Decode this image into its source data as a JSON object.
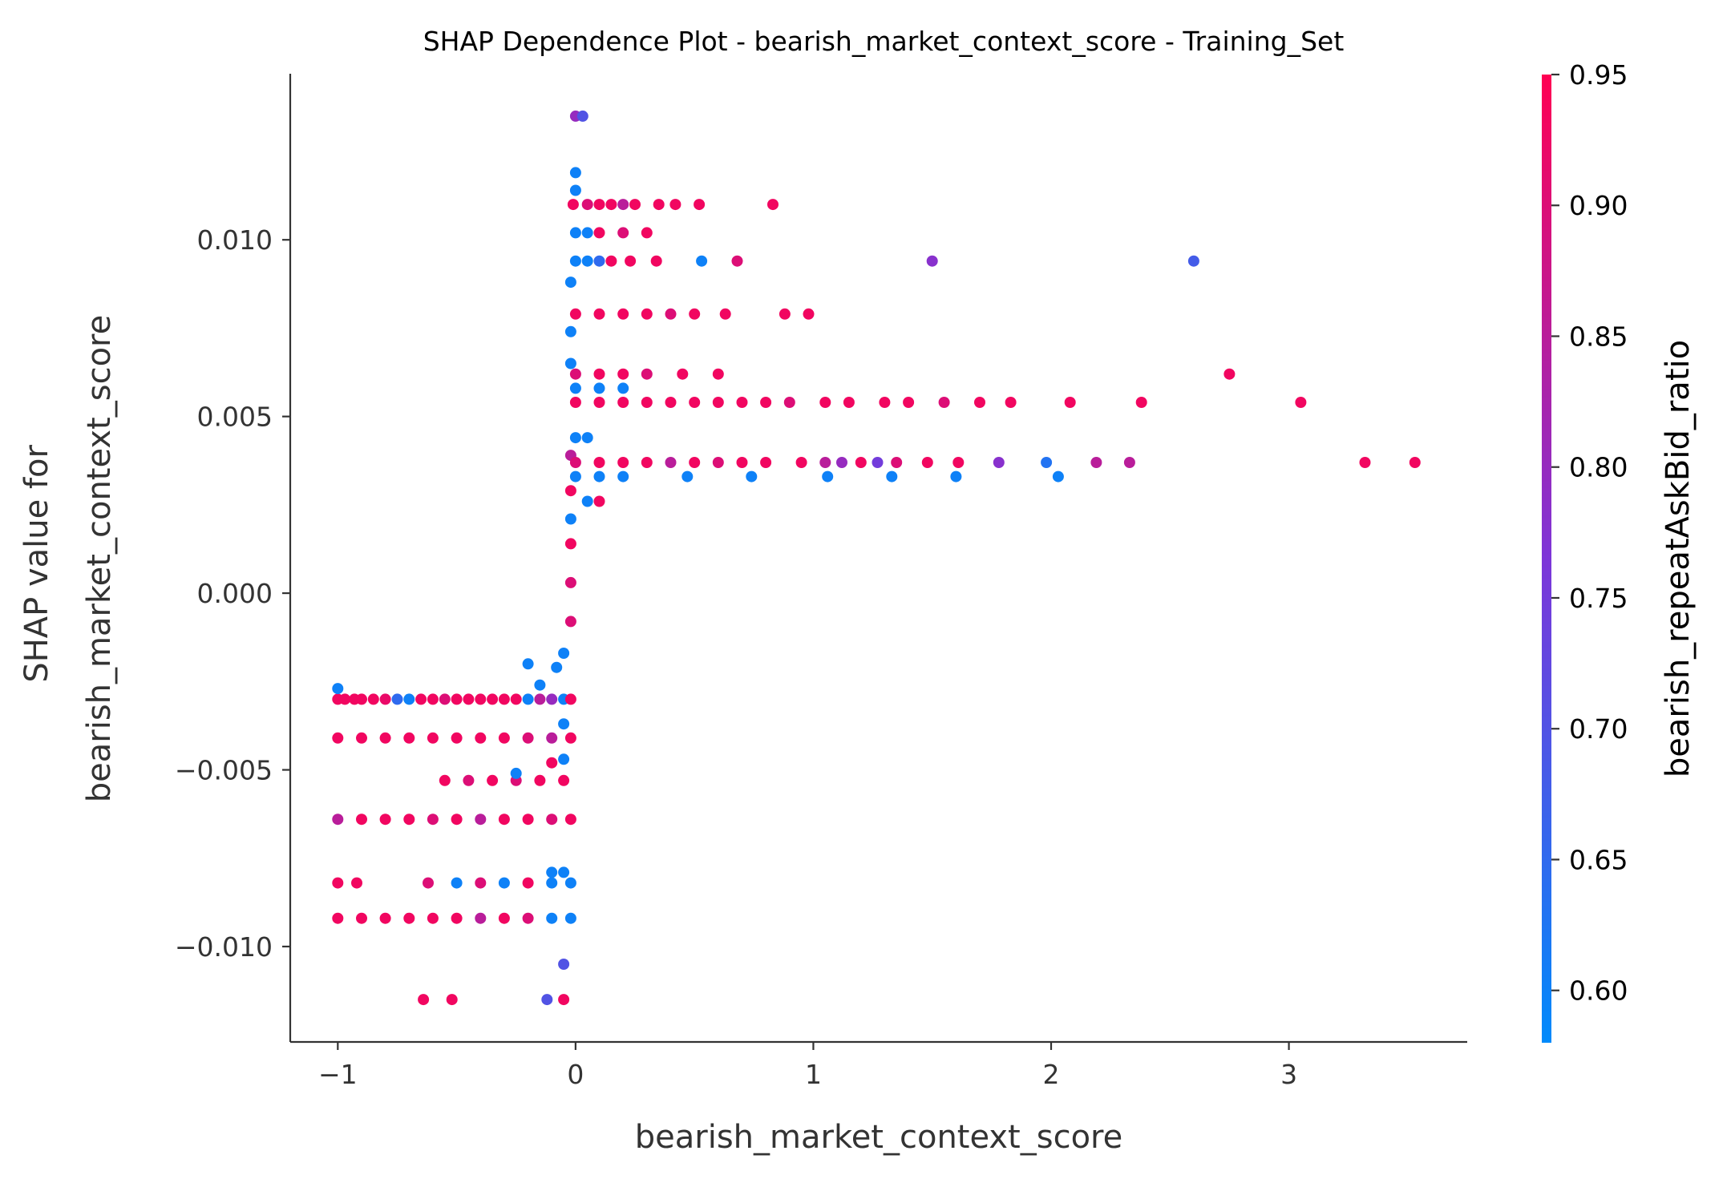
{
  "chart_data": {
    "type": "scatter",
    "title": "SHAP Dependence Plot - bearish_market_context_score - Training_Set",
    "xlabel": "bearish_market_context_score",
    "ylabel_lines": [
      "SHAP value for",
      "bearish_market_context_score"
    ],
    "xlim": [
      -1.2,
      3.75
    ],
    "ylim": [
      -0.0127,
      0.0147
    ],
    "xticks": [
      -1,
      0,
      1,
      2,
      3
    ],
    "xtick_labels": [
      "−1",
      "0",
      "1",
      "2",
      "3"
    ],
    "yticks": [
      -0.01,
      -0.005,
      0.0,
      0.005,
      0.01
    ],
    "ytick_labels": [
      "−0.010",
      "−0.005",
      "0.000",
      "0.005",
      "0.010"
    ],
    "grid": false,
    "colorbar": {
      "label": "bearish_repeatAskBid_ratio",
      "range": [
        0.58,
        0.95
      ],
      "ticks": [
        0.6,
        0.65,
        0.7,
        0.75,
        0.8,
        0.85,
        0.9,
        0.95
      ],
      "tick_labels": [
        "0.60",
        "0.65",
        "0.70",
        "0.75",
        "0.80",
        "0.85",
        "0.90",
        "0.95"
      ],
      "colormap": [
        "#008afb",
        "#ff0052"
      ]
    },
    "points": [
      {
        "x": -1.0,
        "y": -0.003,
        "c": 0.93
      },
      {
        "x": -0.97,
        "y": -0.003,
        "c": 0.93
      },
      {
        "x": -0.93,
        "y": -0.003,
        "c": 0.93
      },
      {
        "x": -0.9,
        "y": -0.003,
        "c": 0.93
      },
      {
        "x": -0.85,
        "y": -0.003,
        "c": 0.93
      },
      {
        "x": -0.8,
        "y": -0.003,
        "c": 0.92
      },
      {
        "x": -0.75,
        "y": -0.003,
        "c": 0.65
      },
      {
        "x": -0.7,
        "y": -0.003,
        "c": 0.6
      },
      {
        "x": -0.65,
        "y": -0.003,
        "c": 0.93
      },
      {
        "x": -0.6,
        "y": -0.003,
        "c": 0.93
      },
      {
        "x": -0.55,
        "y": -0.003,
        "c": 0.9
      },
      {
        "x": -0.5,
        "y": -0.003,
        "c": 0.93
      },
      {
        "x": -0.45,
        "y": -0.003,
        "c": 0.93
      },
      {
        "x": -0.4,
        "y": -0.003,
        "c": 0.93
      },
      {
        "x": -0.35,
        "y": -0.003,
        "c": 0.93
      },
      {
        "x": -0.3,
        "y": -0.003,
        "c": 0.93
      },
      {
        "x": -0.25,
        "y": -0.003,
        "c": 0.93
      },
      {
        "x": -0.2,
        "y": -0.003,
        "c": 0.6
      },
      {
        "x": -0.15,
        "y": -0.003,
        "c": 0.85
      },
      {
        "x": -0.1,
        "y": -0.003,
        "c": 0.8
      },
      {
        "x": -0.05,
        "y": -0.003,
        "c": 0.6
      },
      {
        "x": -0.02,
        "y": -0.003,
        "c": 0.93
      },
      {
        "x": -1.0,
        "y": -0.0027,
        "c": 0.6
      },
      {
        "x": -1.0,
        "y": -0.0041,
        "c": 0.93
      },
      {
        "x": -0.9,
        "y": -0.0041,
        "c": 0.93
      },
      {
        "x": -0.8,
        "y": -0.0041,
        "c": 0.93
      },
      {
        "x": -0.7,
        "y": -0.0041,
        "c": 0.93
      },
      {
        "x": -0.6,
        "y": -0.0041,
        "c": 0.93
      },
      {
        "x": -0.5,
        "y": -0.0041,
        "c": 0.93
      },
      {
        "x": -0.4,
        "y": -0.0041,
        "c": 0.93
      },
      {
        "x": -0.3,
        "y": -0.0041,
        "c": 0.93
      },
      {
        "x": -0.2,
        "y": -0.0041,
        "c": 0.9
      },
      {
        "x": -0.1,
        "y": -0.0041,
        "c": 0.85
      },
      {
        "x": -0.02,
        "y": -0.0041,
        "c": 0.93
      },
      {
        "x": -0.55,
        "y": -0.0053,
        "c": 0.93
      },
      {
        "x": -0.45,
        "y": -0.0053,
        "c": 0.9
      },
      {
        "x": -0.35,
        "y": -0.0053,
        "c": 0.93
      },
      {
        "x": -0.25,
        "y": -0.0053,
        "c": 0.9
      },
      {
        "x": -0.15,
        "y": -0.0053,
        "c": 0.93
      },
      {
        "x": -0.05,
        "y": -0.0053,
        "c": 0.93
      },
      {
        "x": -1.0,
        "y": -0.0064,
        "c": 0.85
      },
      {
        "x": -0.9,
        "y": -0.0064,
        "c": 0.93
      },
      {
        "x": -0.8,
        "y": -0.0064,
        "c": 0.93
      },
      {
        "x": -0.7,
        "y": -0.0064,
        "c": 0.93
      },
      {
        "x": -0.6,
        "y": -0.0064,
        "c": 0.9
      },
      {
        "x": -0.5,
        "y": -0.0064,
        "c": 0.93
      },
      {
        "x": -0.4,
        "y": -0.0064,
        "c": 0.85
      },
      {
        "x": -0.3,
        "y": -0.0064,
        "c": 0.93
      },
      {
        "x": -0.2,
        "y": -0.0064,
        "c": 0.93
      },
      {
        "x": -0.1,
        "y": -0.0064,
        "c": 0.9
      },
      {
        "x": -0.02,
        "y": -0.0064,
        "c": 0.93
      },
      {
        "x": -1.0,
        "y": -0.0082,
        "c": 0.93
      },
      {
        "x": -0.92,
        "y": -0.0082,
        "c": 0.93
      },
      {
        "x": -0.62,
        "y": -0.0082,
        "c": 0.9
      },
      {
        "x": -0.5,
        "y": -0.0082,
        "c": 0.6
      },
      {
        "x": -0.4,
        "y": -0.0082,
        "c": 0.9
      },
      {
        "x": -0.3,
        "y": -0.0082,
        "c": 0.6
      },
      {
        "x": -0.2,
        "y": -0.0082,
        "c": 0.93
      },
      {
        "x": -0.1,
        "y": -0.0082,
        "c": 0.6
      },
      {
        "x": -0.02,
        "y": -0.0082,
        "c": 0.6
      },
      {
        "x": -0.1,
        "y": -0.0079,
        "c": 0.6
      },
      {
        "x": -0.05,
        "y": -0.0079,
        "c": 0.6
      },
      {
        "x": -1.0,
        "y": -0.0092,
        "c": 0.93
      },
      {
        "x": -0.9,
        "y": -0.0092,
        "c": 0.93
      },
      {
        "x": -0.8,
        "y": -0.0092,
        "c": 0.93
      },
      {
        "x": -0.7,
        "y": -0.0092,
        "c": 0.93
      },
      {
        "x": -0.6,
        "y": -0.0092,
        "c": 0.93
      },
      {
        "x": -0.5,
        "y": -0.0092,
        "c": 0.93
      },
      {
        "x": -0.4,
        "y": -0.0092,
        "c": 0.85
      },
      {
        "x": -0.3,
        "y": -0.0092,
        "c": 0.93
      },
      {
        "x": -0.2,
        "y": -0.0092,
        "c": 0.9
      },
      {
        "x": -0.1,
        "y": -0.0092,
        "c": 0.6
      },
      {
        "x": -0.02,
        "y": -0.0092,
        "c": 0.6
      },
      {
        "x": -0.64,
        "y": -0.0115,
        "c": 0.93
      },
      {
        "x": -0.52,
        "y": -0.0115,
        "c": 0.93
      },
      {
        "x": -0.12,
        "y": -0.0115,
        "c": 0.7
      },
      {
        "x": -0.05,
        "y": -0.0115,
        "c": 0.93
      },
      {
        "x": -0.05,
        "y": -0.0105,
        "c": 0.7
      },
      {
        "x": -0.2,
        "y": -0.002,
        "c": 0.6
      },
      {
        "x": -0.15,
        "y": -0.0026,
        "c": 0.6
      },
      {
        "x": -0.05,
        "y": -0.0017,
        "c": 0.6
      },
      {
        "x": -0.08,
        "y": -0.0021,
        "c": 0.6
      },
      {
        "x": -0.05,
        "y": -0.0037,
        "c": 0.6
      },
      {
        "x": -0.05,
        "y": -0.0047,
        "c": 0.6
      },
      {
        "x": -0.1,
        "y": -0.0048,
        "c": 0.93
      },
      {
        "x": -0.25,
        "y": -0.0051,
        "c": 0.6
      },
      {
        "x": -0.02,
        "y": -0.0008,
        "c": 0.9
      },
      {
        "x": -0.02,
        "y": 0.0003,
        "c": 0.9
      },
      {
        "x": -0.02,
        "y": 0.0014,
        "c": 0.93
      },
      {
        "x": -0.02,
        "y": 0.0021,
        "c": 0.6
      },
      {
        "x": -0.02,
        "y": 0.0029,
        "c": 0.93
      },
      {
        "x": -0.02,
        "y": 0.0039,
        "c": 0.85
      },
      {
        "x": -0.02,
        "y": 0.0065,
        "c": 0.6
      },
      {
        "x": -0.02,
        "y": 0.0074,
        "c": 0.6
      },
      {
        "x": -0.02,
        "y": 0.0088,
        "c": 0.6
      },
      {
        "x": 0.05,
        "y": 0.0026,
        "c": 0.6
      },
      {
        "x": 0.05,
        "y": 0.0044,
        "c": 0.6
      },
      {
        "x": 0.1,
        "y": 0.0026,
        "c": 0.93
      },
      {
        "x": 0.0,
        "y": 0.0114,
        "c": 0.6
      },
      {
        "x": 0.0,
        "y": 0.0119,
        "c": 0.6
      },
      {
        "x": 0.0,
        "y": 0.0135,
        "c": 0.8
      },
      {
        "x": 0.03,
        "y": 0.0135,
        "c": 0.7
      },
      {
        "x": -0.01,
        "y": 0.011,
        "c": 0.93
      },
      {
        "x": 0.05,
        "y": 0.011,
        "c": 0.9
      },
      {
        "x": 0.1,
        "y": 0.011,
        "c": 0.93
      },
      {
        "x": 0.15,
        "y": 0.011,
        "c": 0.93
      },
      {
        "x": 0.2,
        "y": 0.011,
        "c": 0.85
      },
      {
        "x": 0.25,
        "y": 0.011,
        "c": 0.93
      },
      {
        "x": 0.35,
        "y": 0.011,
        "c": 0.93
      },
      {
        "x": 0.42,
        "y": 0.011,
        "c": 0.93
      },
      {
        "x": 0.52,
        "y": 0.011,
        "c": 0.93
      },
      {
        "x": 0.83,
        "y": 0.011,
        "c": 0.93
      },
      {
        "x": 0.0,
        "y": 0.0102,
        "c": 0.6
      },
      {
        "x": 0.05,
        "y": 0.0102,
        "c": 0.6
      },
      {
        "x": 0.1,
        "y": 0.0102,
        "c": 0.93
      },
      {
        "x": 0.2,
        "y": 0.0102,
        "c": 0.9
      },
      {
        "x": 0.3,
        "y": 0.0102,
        "c": 0.93
      },
      {
        "x": 0.0,
        "y": 0.0094,
        "c": 0.6
      },
      {
        "x": 0.05,
        "y": 0.0094,
        "c": 0.6
      },
      {
        "x": 0.1,
        "y": 0.0094,
        "c": 0.65
      },
      {
        "x": 0.15,
        "y": 0.0094,
        "c": 0.93
      },
      {
        "x": 0.23,
        "y": 0.0094,
        "c": 0.93
      },
      {
        "x": 0.34,
        "y": 0.0094,
        "c": 0.93
      },
      {
        "x": 0.53,
        "y": 0.0094,
        "c": 0.6
      },
      {
        "x": 0.68,
        "y": 0.0094,
        "c": 0.9
      },
      {
        "x": 1.5,
        "y": 0.0094,
        "c": 0.78
      },
      {
        "x": 2.6,
        "y": 0.0094,
        "c": 0.68
      },
      {
        "x": 0.0,
        "y": 0.0079,
        "c": 0.93
      },
      {
        "x": 0.1,
        "y": 0.0079,
        "c": 0.93
      },
      {
        "x": 0.2,
        "y": 0.0079,
        "c": 0.93
      },
      {
        "x": 0.3,
        "y": 0.0079,
        "c": 0.93
      },
      {
        "x": 0.4,
        "y": 0.0079,
        "c": 0.9
      },
      {
        "x": 0.5,
        "y": 0.0079,
        "c": 0.93
      },
      {
        "x": 0.63,
        "y": 0.0079,
        "c": 0.93
      },
      {
        "x": 0.88,
        "y": 0.0079,
        "c": 0.93
      },
      {
        "x": 0.98,
        "y": 0.0079,
        "c": 0.93
      },
      {
        "x": 0.0,
        "y": 0.0062,
        "c": 0.9
      },
      {
        "x": 0.1,
        "y": 0.0062,
        "c": 0.93
      },
      {
        "x": 0.2,
        "y": 0.0062,
        "c": 0.93
      },
      {
        "x": 0.3,
        "y": 0.0062,
        "c": 0.9
      },
      {
        "x": 0.45,
        "y": 0.0062,
        "c": 0.93
      },
      {
        "x": 0.6,
        "y": 0.0062,
        "c": 0.93
      },
      {
        "x": 2.75,
        "y": 0.0062,
        "c": 0.93
      },
      {
        "x": 0.0,
        "y": 0.0058,
        "c": 0.6
      },
      {
        "x": 0.1,
        "y": 0.0058,
        "c": 0.6
      },
      {
        "x": 0.2,
        "y": 0.0058,
        "c": 0.6
      },
      {
        "x": 0.0,
        "y": 0.0054,
        "c": 0.93
      },
      {
        "x": 0.1,
        "y": 0.0054,
        "c": 0.93
      },
      {
        "x": 0.2,
        "y": 0.0054,
        "c": 0.93
      },
      {
        "x": 0.3,
        "y": 0.0054,
        "c": 0.93
      },
      {
        "x": 0.4,
        "y": 0.0054,
        "c": 0.93
      },
      {
        "x": 0.5,
        "y": 0.0054,
        "c": 0.93
      },
      {
        "x": 0.6,
        "y": 0.0054,
        "c": 0.93
      },
      {
        "x": 0.7,
        "y": 0.0054,
        "c": 0.93
      },
      {
        "x": 0.8,
        "y": 0.0054,
        "c": 0.93
      },
      {
        "x": 0.9,
        "y": 0.0054,
        "c": 0.9
      },
      {
        "x": 1.05,
        "y": 0.0054,
        "c": 0.93
      },
      {
        "x": 1.15,
        "y": 0.0054,
        "c": 0.93
      },
      {
        "x": 1.3,
        "y": 0.0054,
        "c": 0.93
      },
      {
        "x": 1.4,
        "y": 0.0054,
        "c": 0.93
      },
      {
        "x": 1.55,
        "y": 0.0054,
        "c": 0.9
      },
      {
        "x": 1.7,
        "y": 0.0054,
        "c": 0.93
      },
      {
        "x": 1.83,
        "y": 0.0054,
        "c": 0.93
      },
      {
        "x": 2.08,
        "y": 0.0054,
        "c": 0.93
      },
      {
        "x": 2.38,
        "y": 0.0054,
        "c": 0.93
      },
      {
        "x": 3.05,
        "y": 0.0054,
        "c": 0.93
      },
      {
        "x": 0.0,
        "y": 0.0044,
        "c": 0.6
      },
      {
        "x": 0.0,
        "y": 0.0033,
        "c": 0.6
      },
      {
        "x": 0.1,
        "y": 0.0033,
        "c": 0.6
      },
      {
        "x": 0.2,
        "y": 0.0033,
        "c": 0.6
      },
      {
        "x": 0.47,
        "y": 0.0033,
        "c": 0.6
      },
      {
        "x": 0.74,
        "y": 0.0033,
        "c": 0.6
      },
      {
        "x": 1.06,
        "y": 0.0033,
        "c": 0.6
      },
      {
        "x": 1.33,
        "y": 0.0033,
        "c": 0.6
      },
      {
        "x": 1.6,
        "y": 0.0033,
        "c": 0.6
      },
      {
        "x": 2.03,
        "y": 0.0033,
        "c": 0.6
      },
      {
        "x": 0.0,
        "y": 0.0037,
        "c": 0.9
      },
      {
        "x": 0.1,
        "y": 0.0037,
        "c": 0.93
      },
      {
        "x": 0.2,
        "y": 0.0037,
        "c": 0.93
      },
      {
        "x": 0.3,
        "y": 0.0037,
        "c": 0.93
      },
      {
        "x": 0.4,
        "y": 0.0037,
        "c": 0.85
      },
      {
        "x": 0.5,
        "y": 0.0037,
        "c": 0.93
      },
      {
        "x": 0.6,
        "y": 0.0037,
        "c": 0.9
      },
      {
        "x": 0.7,
        "y": 0.0037,
        "c": 0.93
      },
      {
        "x": 0.8,
        "y": 0.0037,
        "c": 0.93
      },
      {
        "x": 0.95,
        "y": 0.0037,
        "c": 0.93
      },
      {
        "x": 1.05,
        "y": 0.0037,
        "c": 0.85
      },
      {
        "x": 1.12,
        "y": 0.0037,
        "c": 0.8
      },
      {
        "x": 1.2,
        "y": 0.0037,
        "c": 0.93
      },
      {
        "x": 1.27,
        "y": 0.0037,
        "c": 0.75
      },
      {
        "x": 1.35,
        "y": 0.0037,
        "c": 0.9
      },
      {
        "x": 1.48,
        "y": 0.0037,
        "c": 0.93
      },
      {
        "x": 1.61,
        "y": 0.0037,
        "c": 0.93
      },
      {
        "x": 1.78,
        "y": 0.0037,
        "c": 0.78
      },
      {
        "x": 1.98,
        "y": 0.0037,
        "c": 0.63
      },
      {
        "x": 2.19,
        "y": 0.0037,
        "c": 0.85
      },
      {
        "x": 2.33,
        "y": 0.0037,
        "c": 0.85
      },
      {
        "x": 3.32,
        "y": 0.0037,
        "c": 0.93
      },
      {
        "x": 3.53,
        "y": 0.0037,
        "c": 0.93
      }
    ]
  }
}
